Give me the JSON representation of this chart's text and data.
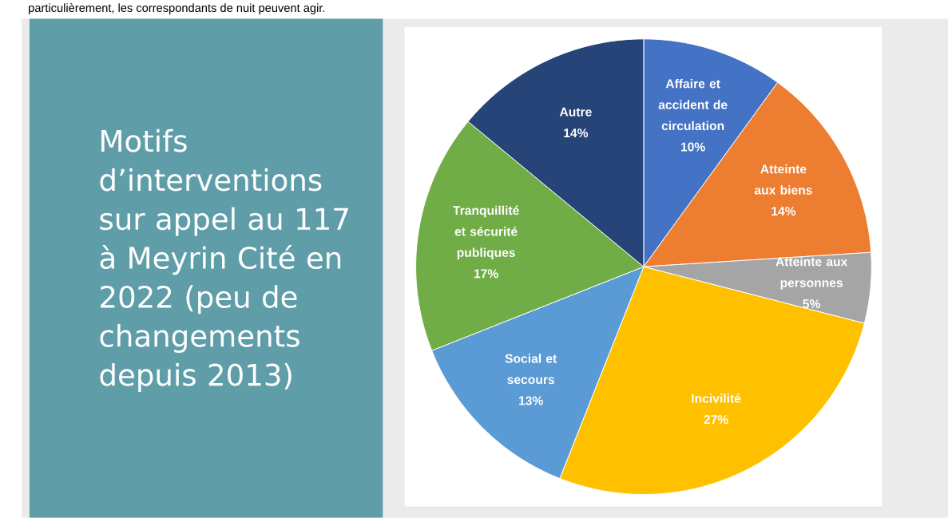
{
  "chart_data": {
    "type": "pie",
    "title": "Motifs d’interventions sur appel au 117 à Meyrin Cité en 2022 (peu de changements depuis 2013)",
    "categories": [
      "Affaire et accident de circulation",
      "Atteinte aux biens",
      "Atteinte aux personnes",
      "Incivilité",
      "Social et secours",
      "Tranquillité et sécurité publiques",
      "Autre"
    ],
    "values": [
      10,
      14,
      5,
      27,
      13,
      17,
      14
    ],
    "value_labels": [
      "10%",
      "14%",
      "5%",
      "27%",
      "13%",
      "17%",
      "14%"
    ],
    "colors": [
      "#4472c4",
      "#ed7d31",
      "#a5a5a5",
      "#ffc000",
      "#5b9bd5",
      "#70ad47",
      "#264478"
    ],
    "annotations": [
      "particulièrement, les correspondants de nuit peuvent agir."
    ]
  }
}
